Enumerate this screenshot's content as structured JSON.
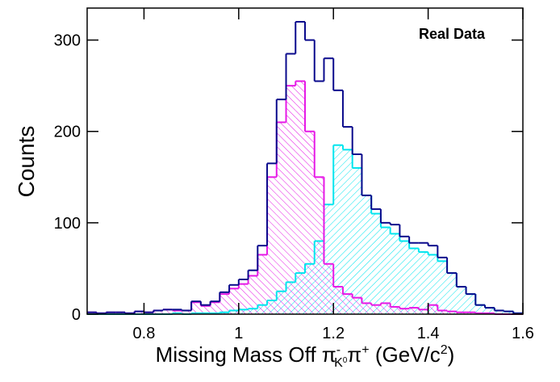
{
  "chart_data": {
    "type": "histogram",
    "annotation": "Real Data",
    "y_label": "Counts",
    "x_label_parts": [
      "Missing Mass Off π",
      "-",
      "K",
      "0",
      "π",
      "+",
      " (GeV/c",
      "2",
      ")"
    ],
    "bins": [
      0.68,
      0.7,
      0.72,
      0.74,
      0.76,
      0.78,
      0.8,
      0.82,
      0.84,
      0.86,
      0.88,
      0.9,
      0.92,
      0.94,
      0.96,
      0.98,
      1.0,
      1.02,
      1.04,
      1.06,
      1.08,
      1.1,
      1.12,
      1.14,
      1.16,
      1.18,
      1.2,
      1.22,
      1.24,
      1.26,
      1.28,
      1.3,
      1.32,
      1.34,
      1.36,
      1.38,
      1.4,
      1.42,
      1.44,
      1.46,
      1.48,
      1.5,
      1.52,
      1.54,
      1.56,
      1.58,
      1.6
    ],
    "series": [
      {
        "color": "#00e5ee",
        "hatch": true,
        "values": [
          0,
          0,
          0,
          0,
          0,
          0,
          0,
          0,
          0,
          1,
          0,
          1,
          1,
          1,
          2,
          4,
          5,
          6,
          10,
          15,
          25,
          35,
          45,
          55,
          80,
          120,
          185,
          180,
          160,
          130,
          110,
          95,
          88,
          80,
          72,
          68,
          65,
          58,
          45,
          30,
          22,
          10,
          7,
          4,
          3,
          1
        ]
      },
      {
        "color": "#e619e6",
        "hatch": true,
        "values": [
          2,
          1,
          2,
          2,
          1,
          3,
          2,
          4,
          5,
          4,
          4,
          13,
          9,
          13,
          22,
          28,
          33,
          42,
          65,
          150,
          210,
          250,
          255,
          200,
          150,
          55,
          30,
          22,
          18,
          12,
          10,
          12,
          8,
          6,
          7,
          5,
          10,
          4,
          3,
          2,
          2,
          1,
          1,
          0,
          0,
          0
        ]
      },
      {
        "color": "#0a0a8c",
        "hatch": false,
        "values": [
          2,
          1,
          2,
          2,
          1,
          3,
          2,
          4,
          5,
          5,
          4,
          14,
          10,
          14,
          24,
          32,
          38,
          48,
          75,
          165,
          235,
          285,
          320,
          300,
          255,
          280,
          245,
          205,
          175,
          130,
          115,
          100,
          98,
          85,
          78,
          78,
          75,
          62,
          45,
          30,
          22,
          10,
          7,
          4,
          3,
          1
        ]
      }
    ],
    "xlim": [
      0.68,
      1.6
    ],
    "xticks": [
      0.8,
      1,
      1.2,
      1.4,
      1.6
    ],
    "ylim": [
      0,
      335
    ],
    "yticks": [
      0,
      100,
      200,
      300
    ]
  }
}
